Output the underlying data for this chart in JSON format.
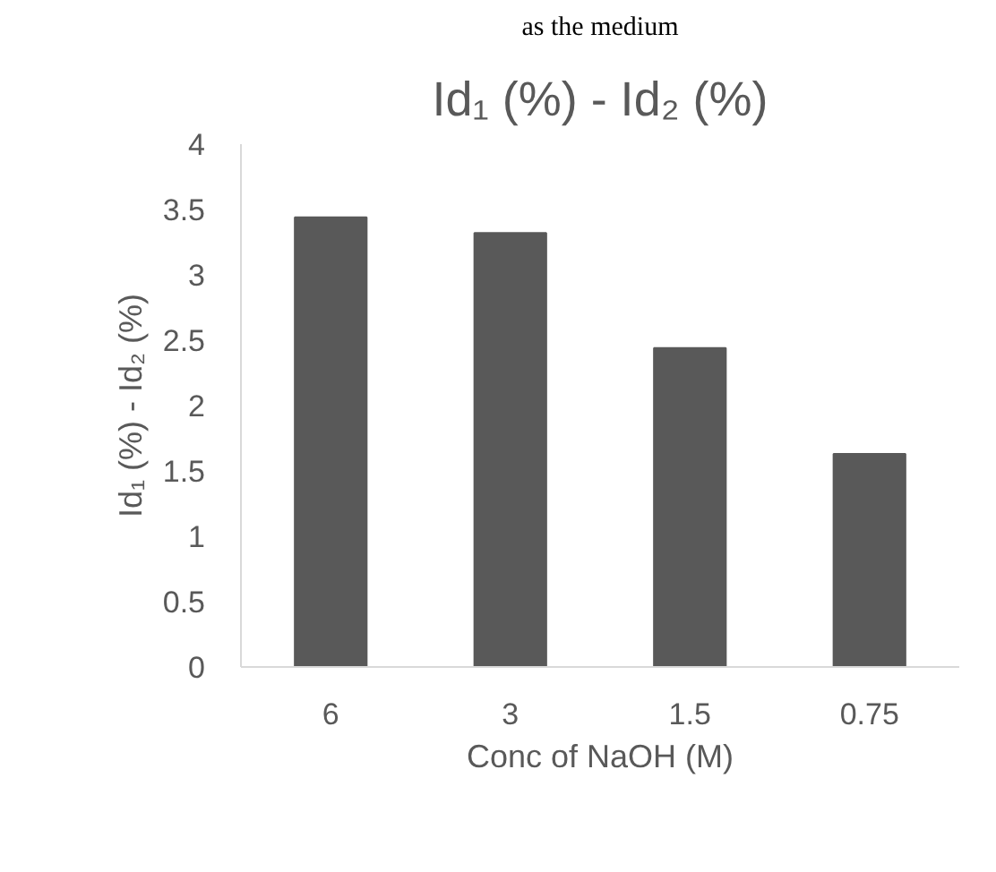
{
  "chart_data": {
    "type": "bar",
    "title": "Id₁ (%) - Id₂ (%)",
    "xlabel": "Conc of NaOH (M)",
    "ylabel": "Id₁ (%) - Id₂ (%)",
    "annotations": [
      "as the medium"
    ],
    "categories": [
      "6",
      "3",
      "1.5",
      "0.75"
    ],
    "values": [
      3.44,
      3.32,
      2.44,
      1.63
    ],
    "color": "#595959",
    "ylim": [
      0,
      4
    ],
    "yticks": [
      0,
      0.5,
      1,
      1.5,
      2,
      2.5,
      3,
      3.5,
      4
    ],
    "grid": false
  }
}
